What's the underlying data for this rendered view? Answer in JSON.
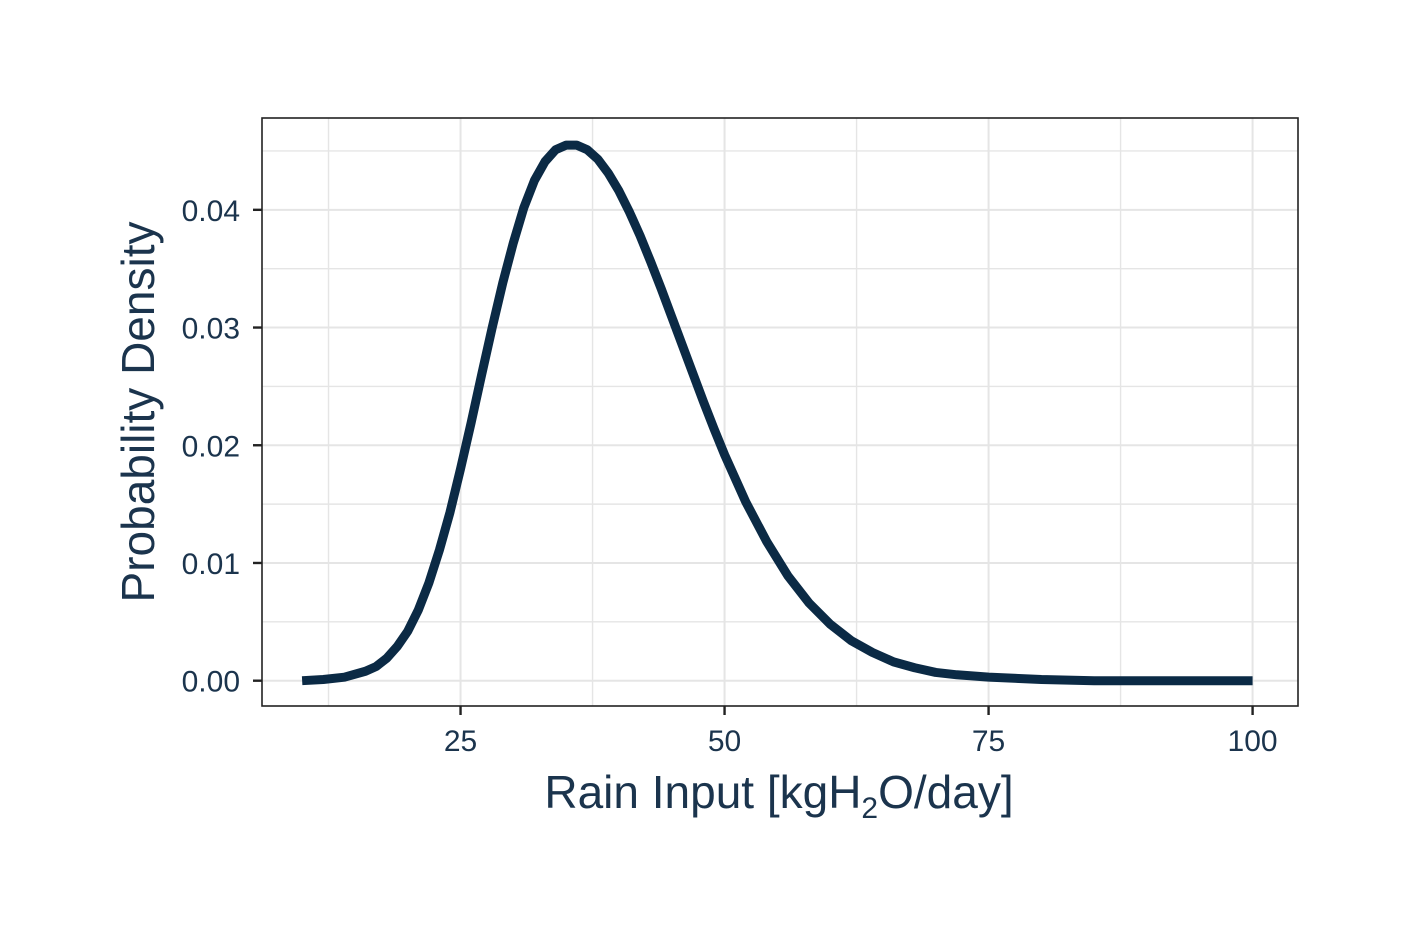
{
  "chart_data": {
    "type": "line",
    "title": "",
    "xlabel": "Rain Input [kgH₂O/day]",
    "xlabel_parts": {
      "prefix": "Rain Input [kgH",
      "subscript": "2",
      "suffix": "O/day]"
    },
    "ylabel": "Probability Density",
    "xlim": [
      6.2,
      104.3
    ],
    "ylim": [
      -0.00215,
      0.0478
    ],
    "x_ticks": [
      25,
      50,
      75,
      100
    ],
    "x_tick_labels": [
      "25",
      "50",
      "75",
      "100"
    ],
    "y_ticks": [
      0.0,
      0.01,
      0.02,
      0.03,
      0.04
    ],
    "y_tick_labels": [
      "0.00",
      "0.01",
      "0.02",
      "0.03",
      "0.04"
    ],
    "x_minor_gridlines": [
      12.5,
      37.5,
      62.5,
      87.5
    ],
    "y_minor_gridlines": [
      0.005,
      0.015,
      0.025,
      0.035,
      0.045
    ],
    "grid": true,
    "legend": "none",
    "series": [
      {
        "x": [
          10,
          12,
          14,
          16,
          17,
          18,
          19,
          20,
          21,
          22,
          23,
          24,
          25,
          26,
          27,
          28,
          29,
          30,
          31,
          32,
          33,
          34,
          35,
          36,
          37,
          38,
          39,
          40,
          41,
          42,
          43,
          44,
          45,
          46,
          47,
          48,
          49,
          50,
          52,
          54,
          56,
          58,
          60,
          62,
          64,
          66,
          68,
          70,
          72,
          75,
          80,
          85,
          90,
          95,
          100
        ],
        "y": [
          0.0,
          0.0001,
          0.0003,
          0.0008,
          0.0012,
          0.0019,
          0.0029,
          0.0042,
          0.006,
          0.0083,
          0.0111,
          0.0143,
          0.018,
          0.0219,
          0.026,
          0.03,
          0.0338,
          0.0372,
          0.0402,
          0.0425,
          0.0441,
          0.0451,
          0.0455,
          0.0455,
          0.0451,
          0.0443,
          0.0431,
          0.0416,
          0.0398,
          0.0378,
          0.0356,
          0.0333,
          0.0309,
          0.0285,
          0.0261,
          0.0237,
          0.0214,
          0.0192,
          0.0152,
          0.0118,
          0.0089,
          0.0066,
          0.0048,
          0.0034,
          0.0024,
          0.0016,
          0.0011,
          0.0007,
          0.0005,
          0.0003,
          0.0001,
          0.0,
          0.0,
          0.0,
          0.0
        ]
      }
    ]
  },
  "colors": {
    "line": "#0b2a45",
    "text": "#1b344d",
    "grid": "#e5e5e5",
    "border": "#222222",
    "tick": "#222222",
    "background": "#ffffff"
  }
}
